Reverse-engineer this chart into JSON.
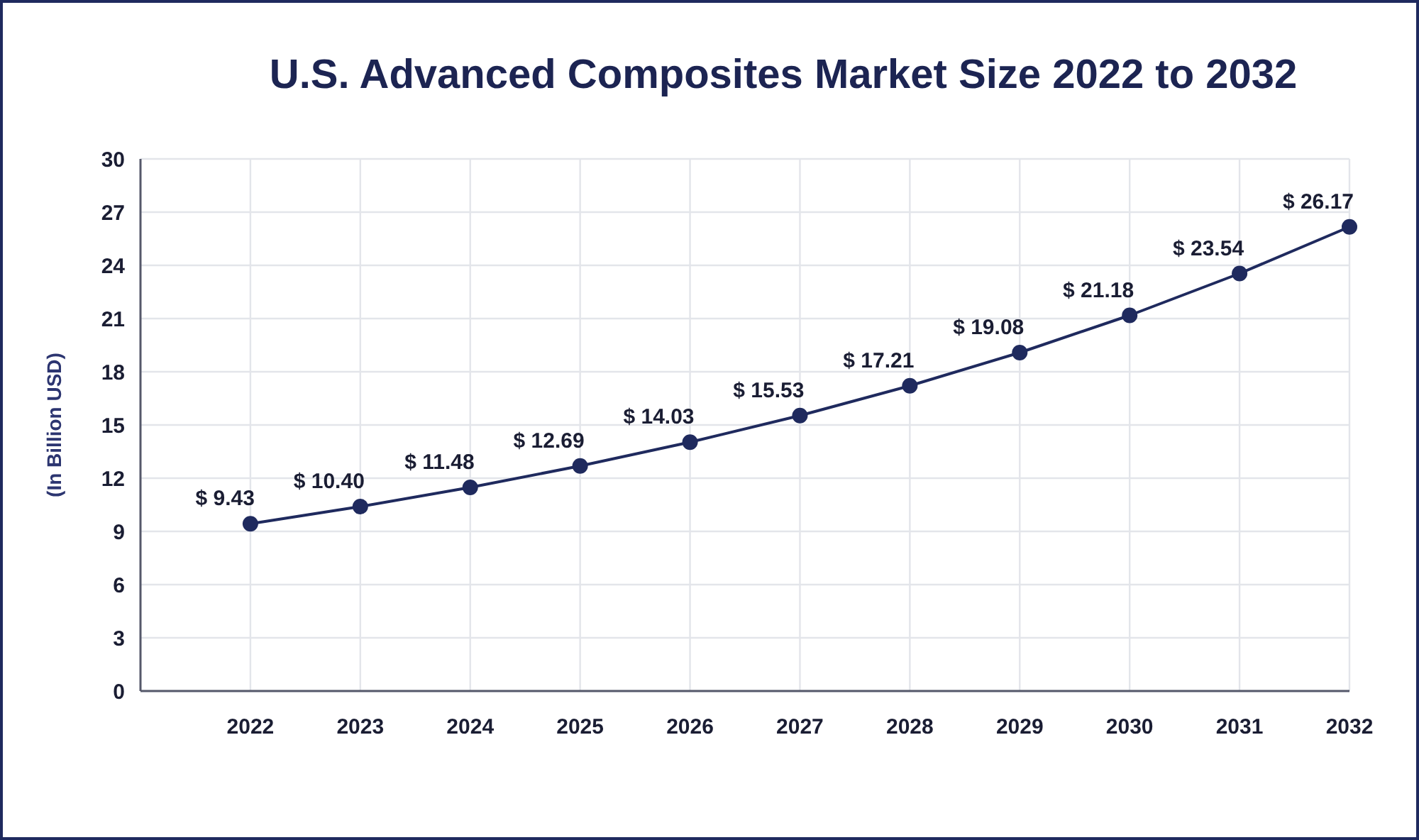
{
  "chart_data": {
    "type": "line",
    "title": "U.S. Advanced Composites Market Size 2022 to 2032",
    "ylabel": "(In Billion USD)",
    "categories": [
      "2022",
      "2023",
      "2024",
      "2025",
      "2026",
      "2027",
      "2028",
      "2029",
      "2030",
      "2031",
      "2032"
    ],
    "series": [
      {
        "color": "#1f2a5e",
        "values": [
          9.43,
          10.4,
          11.48,
          12.69,
          14.03,
          15.53,
          17.21,
          19.08,
          21.18,
          23.54,
          26.17
        ],
        "value_labels": [
          "$ 9.43",
          "$ 10.40",
          "$ 11.48",
          "$ 12.69",
          "$ 14.03",
          "$ 15.53",
          "$ 17.21",
          "$ 19.08",
          "$ 21.18",
          "$ 23.54",
          "$ 26.17"
        ]
      }
    ],
    "ylim": [
      0,
      30
    ],
    "yticks": [
      0,
      3,
      6,
      9,
      12,
      15,
      18,
      21,
      24,
      27,
      30
    ],
    "grid": true,
    "marker": "circle",
    "line_style": "solid"
  }
}
